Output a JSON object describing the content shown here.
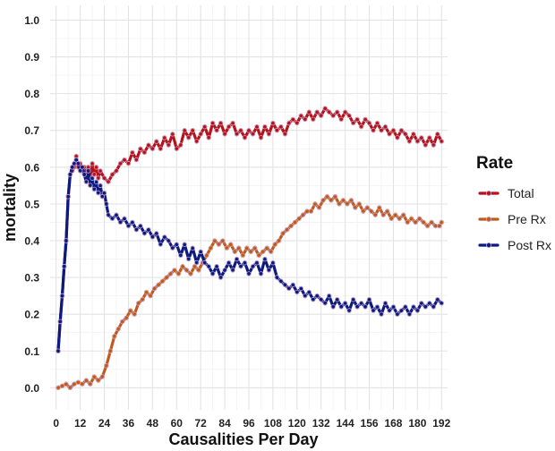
{
  "chart_data": {
    "type": "line",
    "xlabel": "Causalities Per Day",
    "ylabel": "mortality",
    "xlim": [
      -3,
      195
    ],
    "ylim": [
      -0.06,
      1.04
    ],
    "xticks": [
      0,
      12,
      24,
      36,
      48,
      60,
      72,
      84,
      96,
      108,
      120,
      132,
      144,
      156,
      168,
      180,
      192
    ],
    "xtick_labels": [
      "0",
      "12",
      "24",
      "36",
      "48",
      "60",
      "72",
      "84",
      "96",
      "108",
      "120",
      "132",
      "144",
      "156",
      "168",
      "180",
      "192"
    ],
    "xminor": [
      6,
      18,
      30,
      42,
      54,
      66,
      78,
      90,
      102,
      114,
      126,
      138,
      150,
      162,
      174,
      186
    ],
    "yticks": [
      0.0,
      0.1,
      0.2,
      0.3,
      0.4,
      0.5,
      0.6,
      0.7,
      0.8,
      0.9,
      1.0
    ],
    "ytick_labels": [
      "0.0",
      "0.1",
      "0.2",
      "0.3",
      "0.4",
      "0.5",
      "0.6",
      "0.7",
      "0.8",
      "0.9",
      "1.0"
    ],
    "grid": true,
    "legend": {
      "title": "Rate",
      "position": "right"
    },
    "series": [
      {
        "name": "Total",
        "color": "#b5121b",
        "points": [
          [
            1,
            0.1
          ],
          [
            2,
            0.18
          ],
          [
            3,
            0.25
          ],
          [
            4,
            0.33
          ],
          [
            5,
            0.4
          ],
          [
            6,
            0.52
          ],
          [
            7,
            0.58
          ],
          [
            8,
            0.59
          ],
          [
            9,
            0.6
          ],
          [
            10,
            0.63
          ],
          [
            11,
            0.6
          ],
          [
            12,
            0.61
          ],
          [
            13,
            0.59
          ],
          [
            14,
            0.6
          ],
          [
            15,
            0.58
          ],
          [
            16,
            0.6
          ],
          [
            17,
            0.57
          ],
          [
            18,
            0.61
          ],
          [
            19,
            0.58
          ],
          [
            20,
            0.6
          ],
          [
            21,
            0.57
          ],
          [
            22,
            0.59
          ],
          [
            24,
            0.57
          ],
          [
            26,
            0.56
          ],
          [
            28,
            0.58
          ],
          [
            30,
            0.59
          ],
          [
            32,
            0.61
          ],
          [
            34,
            0.62
          ],
          [
            36,
            0.61
          ],
          [
            38,
            0.64
          ],
          [
            40,
            0.62
          ],
          [
            42,
            0.65
          ],
          [
            44,
            0.64
          ],
          [
            46,
            0.66
          ],
          [
            48,
            0.65
          ],
          [
            50,
            0.67
          ],
          [
            52,
            0.65
          ],
          [
            54,
            0.68
          ],
          [
            56,
            0.66
          ],
          [
            58,
            0.69
          ],
          [
            60,
            0.65
          ],
          [
            62,
            0.66
          ],
          [
            64,
            0.7
          ],
          [
            66,
            0.68
          ],
          [
            68,
            0.7
          ],
          [
            70,
            0.67
          ],
          [
            72,
            0.69
          ],
          [
            74,
            0.71
          ],
          [
            76,
            0.68
          ],
          [
            78,
            0.72
          ],
          [
            80,
            0.7
          ],
          [
            82,
            0.72
          ],
          [
            84,
            0.69
          ],
          [
            86,
            0.71
          ],
          [
            88,
            0.72
          ],
          [
            90,
            0.69
          ],
          [
            92,
            0.7
          ],
          [
            94,
            0.68
          ],
          [
            96,
            0.7
          ],
          [
            98,
            0.69
          ],
          [
            100,
            0.71
          ],
          [
            102,
            0.68
          ],
          [
            104,
            0.71
          ],
          [
            106,
            0.69
          ],
          [
            108,
            0.72
          ],
          [
            110,
            0.7
          ],
          [
            112,
            0.71
          ],
          [
            114,
            0.69
          ],
          [
            116,
            0.72
          ],
          [
            118,
            0.73
          ],
          [
            120,
            0.72
          ],
          [
            122,
            0.74
          ],
          [
            124,
            0.73
          ],
          [
            126,
            0.75
          ],
          [
            128,
            0.73
          ],
          [
            130,
            0.75
          ],
          [
            132,
            0.74
          ],
          [
            134,
            0.76
          ],
          [
            136,
            0.75
          ],
          [
            138,
            0.74
          ],
          [
            140,
            0.75
          ],
          [
            142,
            0.73
          ],
          [
            144,
            0.75
          ],
          [
            146,
            0.74
          ],
          [
            148,
            0.72
          ],
          [
            150,
            0.73
          ],
          [
            152,
            0.71
          ],
          [
            154,
            0.73
          ],
          [
            156,
            0.72
          ],
          [
            158,
            0.7
          ],
          [
            160,
            0.72
          ],
          [
            162,
            0.7
          ],
          [
            164,
            0.71
          ],
          [
            166,
            0.69
          ],
          [
            168,
            0.7
          ],
          [
            170,
            0.68
          ],
          [
            172,
            0.7
          ],
          [
            174,
            0.69
          ],
          [
            176,
            0.67
          ],
          [
            178,
            0.69
          ],
          [
            180,
            0.67
          ],
          [
            182,
            0.68
          ],
          [
            184,
            0.66
          ],
          [
            186,
            0.68
          ],
          [
            188,
            0.66
          ],
          [
            190,
            0.69
          ],
          [
            192,
            0.67
          ]
        ]
      },
      {
        "name": "Pre Rx",
        "color": "#c05a1a",
        "points": [
          [
            1,
            0.0
          ],
          [
            3,
            0.005
          ],
          [
            5,
            0.01
          ],
          [
            7,
            0.0
          ],
          [
            9,
            0.01
          ],
          [
            11,
            0.015
          ],
          [
            13,
            0.01
          ],
          [
            15,
            0.02
          ],
          [
            17,
            0.01
          ],
          [
            19,
            0.03
          ],
          [
            21,
            0.02
          ],
          [
            23,
            0.03
          ],
          [
            25,
            0.06
          ],
          [
            27,
            0.1
          ],
          [
            29,
            0.14
          ],
          [
            31,
            0.16
          ],
          [
            33,
            0.18
          ],
          [
            35,
            0.19
          ],
          [
            37,
            0.21
          ],
          [
            39,
            0.2
          ],
          [
            41,
            0.23
          ],
          [
            43,
            0.24
          ],
          [
            45,
            0.26
          ],
          [
            47,
            0.25
          ],
          [
            49,
            0.27
          ],
          [
            51,
            0.28
          ],
          [
            53,
            0.29
          ],
          [
            55,
            0.3
          ],
          [
            57,
            0.31
          ],
          [
            59,
            0.32
          ],
          [
            61,
            0.31
          ],
          [
            63,
            0.33
          ],
          [
            65,
            0.32
          ],
          [
            67,
            0.31
          ],
          [
            69,
            0.33
          ],
          [
            71,
            0.32
          ],
          [
            73,
            0.34
          ],
          [
            75,
            0.36
          ],
          [
            77,
            0.38
          ],
          [
            79,
            0.4
          ],
          [
            81,
            0.39
          ],
          [
            83,
            0.4
          ],
          [
            85,
            0.38
          ],
          [
            87,
            0.39
          ],
          [
            89,
            0.37
          ],
          [
            91,
            0.38
          ],
          [
            93,
            0.36
          ],
          [
            95,
            0.38
          ],
          [
            97,
            0.37
          ],
          [
            99,
            0.38
          ],
          [
            101,
            0.36
          ],
          [
            103,
            0.37
          ],
          [
            105,
            0.38
          ],
          [
            107,
            0.37
          ],
          [
            109,
            0.39
          ],
          [
            111,
            0.4
          ],
          [
            113,
            0.42
          ],
          [
            115,
            0.43
          ],
          [
            117,
            0.44
          ],
          [
            119,
            0.45
          ],
          [
            121,
            0.46
          ],
          [
            123,
            0.47
          ],
          [
            125,
            0.48
          ],
          [
            127,
            0.48
          ],
          [
            129,
            0.5
          ],
          [
            131,
            0.49
          ],
          [
            133,
            0.51
          ],
          [
            135,
            0.52
          ],
          [
            137,
            0.51
          ],
          [
            139,
            0.52
          ],
          [
            141,
            0.5
          ],
          [
            143,
            0.51
          ],
          [
            145,
            0.5
          ],
          [
            147,
            0.51
          ],
          [
            149,
            0.49
          ],
          [
            151,
            0.5
          ],
          [
            153,
            0.48
          ],
          [
            155,
            0.49
          ],
          [
            157,
            0.48
          ],
          [
            159,
            0.47
          ],
          [
            161,
            0.49
          ],
          [
            163,
            0.47
          ],
          [
            165,
            0.48
          ],
          [
            167,
            0.46
          ],
          [
            169,
            0.47
          ],
          [
            171,
            0.46
          ],
          [
            173,
            0.47
          ],
          [
            175,
            0.45
          ],
          [
            177,
            0.46
          ],
          [
            179,
            0.45
          ],
          [
            181,
            0.46
          ],
          [
            183,
            0.45
          ],
          [
            185,
            0.44
          ],
          [
            187,
            0.45
          ],
          [
            189,
            0.44
          ],
          [
            191,
            0.44
          ],
          [
            192,
            0.45
          ]
        ]
      },
      {
        "name": "Post Rx",
        "color": "#0b1a80",
        "points": [
          [
            1,
            0.1
          ],
          [
            2,
            0.18
          ],
          [
            3,
            0.25
          ],
          [
            4,
            0.33
          ],
          [
            5,
            0.4
          ],
          [
            6,
            0.52
          ],
          [
            7,
            0.58
          ],
          [
            8,
            0.6
          ],
          [
            9,
            0.61
          ],
          [
            10,
            0.62
          ],
          [
            11,
            0.61
          ],
          [
            12,
            0.59
          ],
          [
            13,
            0.6
          ],
          [
            14,
            0.58
          ],
          [
            15,
            0.56
          ],
          [
            16,
            0.59
          ],
          [
            17,
            0.55
          ],
          [
            18,
            0.57
          ],
          [
            19,
            0.54
          ],
          [
            20,
            0.56
          ],
          [
            21,
            0.53
          ],
          [
            22,
            0.55
          ],
          [
            23,
            0.52
          ],
          [
            24,
            0.53
          ],
          [
            25,
            0.5
          ],
          [
            26,
            0.47
          ],
          [
            28,
            0.46
          ],
          [
            30,
            0.47
          ],
          [
            32,
            0.45
          ],
          [
            34,
            0.46
          ],
          [
            36,
            0.44
          ],
          [
            38,
            0.45
          ],
          [
            40,
            0.43
          ],
          [
            42,
            0.44
          ],
          [
            44,
            0.42
          ],
          [
            46,
            0.43
          ],
          [
            48,
            0.41
          ],
          [
            50,
            0.42
          ],
          [
            52,
            0.39
          ],
          [
            54,
            0.41
          ],
          [
            56,
            0.4
          ],
          [
            58,
            0.38
          ],
          [
            60,
            0.39
          ],
          [
            62,
            0.36
          ],
          [
            64,
            0.39
          ],
          [
            66,
            0.35
          ],
          [
            68,
            0.38
          ],
          [
            70,
            0.34
          ],
          [
            72,
            0.37
          ],
          [
            74,
            0.34
          ],
          [
            76,
            0.33
          ],
          [
            78,
            0.31
          ],
          [
            80,
            0.33
          ],
          [
            82,
            0.3
          ],
          [
            84,
            0.32
          ],
          [
            86,
            0.34
          ],
          [
            88,
            0.32
          ],
          [
            90,
            0.35
          ],
          [
            92,
            0.33
          ],
          [
            94,
            0.34
          ],
          [
            96,
            0.31
          ],
          [
            98,
            0.33
          ],
          [
            100,
            0.34
          ],
          [
            102,
            0.31
          ],
          [
            104,
            0.35
          ],
          [
            106,
            0.32
          ],
          [
            108,
            0.34
          ],
          [
            110,
            0.3
          ],
          [
            112,
            0.29
          ],
          [
            114,
            0.28
          ],
          [
            116,
            0.27
          ],
          [
            118,
            0.28
          ],
          [
            120,
            0.26
          ],
          [
            122,
            0.27
          ],
          [
            124,
            0.25
          ],
          [
            126,
            0.26
          ],
          [
            128,
            0.24
          ],
          [
            130,
            0.25
          ],
          [
            132,
            0.24
          ],
          [
            134,
            0.23
          ],
          [
            136,
            0.25
          ],
          [
            138,
            0.22
          ],
          [
            140,
            0.24
          ],
          [
            142,
            0.22
          ],
          [
            144,
            0.23
          ],
          [
            146,
            0.21
          ],
          [
            148,
            0.24
          ],
          [
            150,
            0.22
          ],
          [
            152,
            0.23
          ],
          [
            154,
            0.22
          ],
          [
            156,
            0.24
          ],
          [
            158,
            0.21
          ],
          [
            160,
            0.22
          ],
          [
            162,
            0.2
          ],
          [
            164,
            0.23
          ],
          [
            166,
            0.21
          ],
          [
            168,
            0.22
          ],
          [
            170,
            0.2
          ],
          [
            172,
            0.21
          ],
          [
            174,
            0.22
          ],
          [
            176,
            0.2
          ],
          [
            178,
            0.22
          ],
          [
            180,
            0.21
          ],
          [
            182,
            0.23
          ],
          [
            184,
            0.22
          ],
          [
            186,
            0.23
          ],
          [
            188,
            0.22
          ],
          [
            190,
            0.24
          ],
          [
            192,
            0.23
          ]
        ]
      }
    ]
  }
}
